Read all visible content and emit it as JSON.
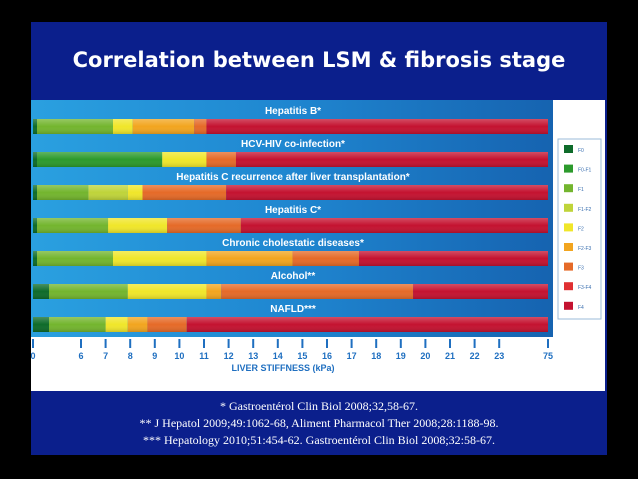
{
  "slide": {
    "title": "Correlation between LSM & fibrosis stage",
    "references": [
      "*  Gastroentérol Clin Biol 2008;32,58-67.",
      "** J Hepatol 2009;49:1062-68, Aliment Pharmacol Ther 2008;28:1188-98.",
      "*** Hepatology 2010;51:454-62. Gastroentérol Clin Biol 2008;32:58-67."
    ]
  },
  "chart_data": {
    "type": "bar",
    "orientation": "horizontal-stacked",
    "xlabel": "LIVER STIFFNESS (kPa)",
    "x_ticks": [
      "0",
      "6",
      "7",
      "8",
      "9",
      "10",
      "11",
      "12",
      "13",
      "14",
      "15",
      "16",
      "17",
      "18",
      "19",
      "20",
      "21",
      "22",
      "23",
      "75"
    ],
    "legend_position": "right",
    "legend": [
      {
        "label": "F0",
        "color": "#0e6b2a"
      },
      {
        "label": "F0-F1",
        "color": "#2c9a2c"
      },
      {
        "label": "F1",
        "color": "#73b52e"
      },
      {
        "label": "F1-F2",
        "color": "#bfd43a"
      },
      {
        "label": "F2",
        "color": "#f0e62a"
      },
      {
        "label": "F2-F3",
        "color": "#f2a51f"
      },
      {
        "label": "F3",
        "color": "#e56a28"
      },
      {
        "label": "F3-F4",
        "color": "#e03032"
      },
      {
        "label": "F4",
        "color": "#c41230"
      }
    ],
    "series": [
      {
        "name": "Hepatitis B*",
        "segments": [
          {
            "stage": "F0",
            "from": 0,
            "to": 0.5
          },
          {
            "stage": "F1",
            "from": 0.5,
            "to": 7.3
          },
          {
            "stage": "F2",
            "from": 7.3,
            "to": 8.1
          },
          {
            "stage": "F2-F3",
            "from": 8.1,
            "to": 10.6
          },
          {
            "stage": "F3",
            "from": 10.6,
            "to": 11.1
          },
          {
            "stage": "F4",
            "from": 11.1,
            "to": 75
          }
        ]
      },
      {
        "name": "HCV-HIV co-infection*",
        "segments": [
          {
            "stage": "F0",
            "from": 0,
            "to": 0.5
          },
          {
            "stage": "F0-F1",
            "from": 0.5,
            "to": 9.3
          },
          {
            "stage": "F2",
            "from": 9.3,
            "to": 11.1
          },
          {
            "stage": "F3",
            "from": 11.1,
            "to": 12.3
          },
          {
            "stage": "F4",
            "from": 12.3,
            "to": 75
          }
        ]
      },
      {
        "name": "Hepatitis C recurrence after liver transplantation*",
        "segments": [
          {
            "stage": "F0",
            "from": 0,
            "to": 0.5
          },
          {
            "stage": "F1",
            "from": 0.5,
            "to": 6.3
          },
          {
            "stage": "F1-F2",
            "from": 6.3,
            "to": 7.9
          },
          {
            "stage": "F2",
            "from": 7.9,
            "to": 8.5
          },
          {
            "stage": "F3",
            "from": 8.5,
            "to": 11.9
          },
          {
            "stage": "F4",
            "from": 11.9,
            "to": 75
          }
        ]
      },
      {
        "name": "Hepatitis C*",
        "segments": [
          {
            "stage": "F0",
            "from": 0,
            "to": 0.5
          },
          {
            "stage": "F1",
            "from": 0.5,
            "to": 7.1
          },
          {
            "stage": "F2",
            "from": 7.1,
            "to": 9.5
          },
          {
            "stage": "F3",
            "from": 9.5,
            "to": 12.5
          },
          {
            "stage": "F4",
            "from": 12.5,
            "to": 75
          }
        ]
      },
      {
        "name": "Chronic cholestatic diseases*",
        "segments": [
          {
            "stage": "F0",
            "from": 0,
            "to": 0.5
          },
          {
            "stage": "F1",
            "from": 0.5,
            "to": 7.3
          },
          {
            "stage": "F2",
            "from": 7.3,
            "to": 11.1
          },
          {
            "stage": "F2-F3",
            "from": 11.1,
            "to": 14.6
          },
          {
            "stage": "F3",
            "from": 14.6,
            "to": 17.3
          },
          {
            "stage": "F4",
            "from": 17.3,
            "to": 75
          }
        ]
      },
      {
        "name": "Alcohol**",
        "segments": [
          {
            "stage": "F0",
            "from": 0,
            "to": 2.0
          },
          {
            "stage": "F1",
            "from": 2.0,
            "to": 7.9
          },
          {
            "stage": "F2",
            "from": 7.9,
            "to": 11.1
          },
          {
            "stage": "F2-F3",
            "from": 11.1,
            "to": 11.7
          },
          {
            "stage": "F3",
            "from": 11.7,
            "to": 19.5
          },
          {
            "stage": "F4",
            "from": 19.5,
            "to": 75
          }
        ]
      },
      {
        "name": "NAFLD***",
        "segments": [
          {
            "stage": "F0",
            "from": 0,
            "to": 2.0
          },
          {
            "stage": "F1",
            "from": 2.0,
            "to": 7.0
          },
          {
            "stage": "F2",
            "from": 7.0,
            "to": 7.9
          },
          {
            "stage": "F2-F3",
            "from": 7.9,
            "to": 8.7
          },
          {
            "stage": "F3",
            "from": 8.7,
            "to": 10.3
          },
          {
            "stage": "F4",
            "from": 10.3,
            "to": 75
          }
        ]
      }
    ]
  }
}
